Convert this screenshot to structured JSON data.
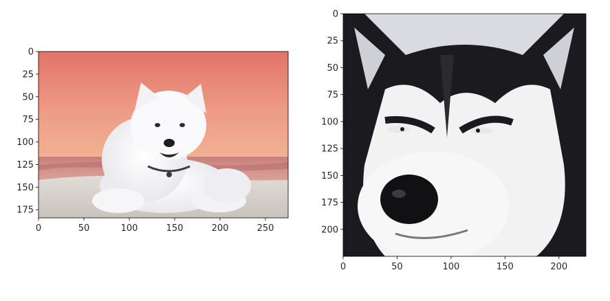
{
  "chart_data": [
    {
      "type": "image",
      "image": "samoyed-puppy-lying-on-beach-at-sunset",
      "xlim": [
        0,
        275
      ],
      "ylim": [
        184,
        0
      ],
      "xticks": [
        0,
        50,
        100,
        150,
        200,
        250
      ],
      "xtick_labels": [
        "0",
        "50",
        "100",
        "150",
        "200",
        "250"
      ],
      "yticks": [
        0,
        25,
        50,
        75,
        100,
        125,
        150,
        175
      ],
      "ytick_labels": [
        "0",
        "25",
        "50",
        "75",
        "100",
        "125",
        "150",
        "175"
      ],
      "colors": {
        "sky_top": "#e2736a",
        "sky_bottom": "#f2b494",
        "sea": "#c98e8a",
        "sand": "#d8d2cc",
        "fur": "#f4f4f4"
      }
    },
    {
      "type": "image",
      "image": "siberian-husky-face-closeup",
      "xlim": [
        0,
        225
      ],
      "ylim": [
        225,
        0
      ],
      "xticks": [
        0,
        50,
        100,
        150,
        200
      ],
      "xtick_labels": [
        "0",
        "50",
        "100",
        "150",
        "200"
      ],
      "yticks": [
        0,
        25,
        50,
        75,
        100,
        125,
        150,
        175,
        200
      ],
      "ytick_labels": [
        "0",
        "25",
        "50",
        "75",
        "100",
        "125",
        "150",
        "175",
        "200"
      ],
      "colors": {
        "background": "#d9dbe0",
        "dark_fur": "#1b1b1f",
        "light_fur": "#f2f2f2"
      }
    }
  ]
}
